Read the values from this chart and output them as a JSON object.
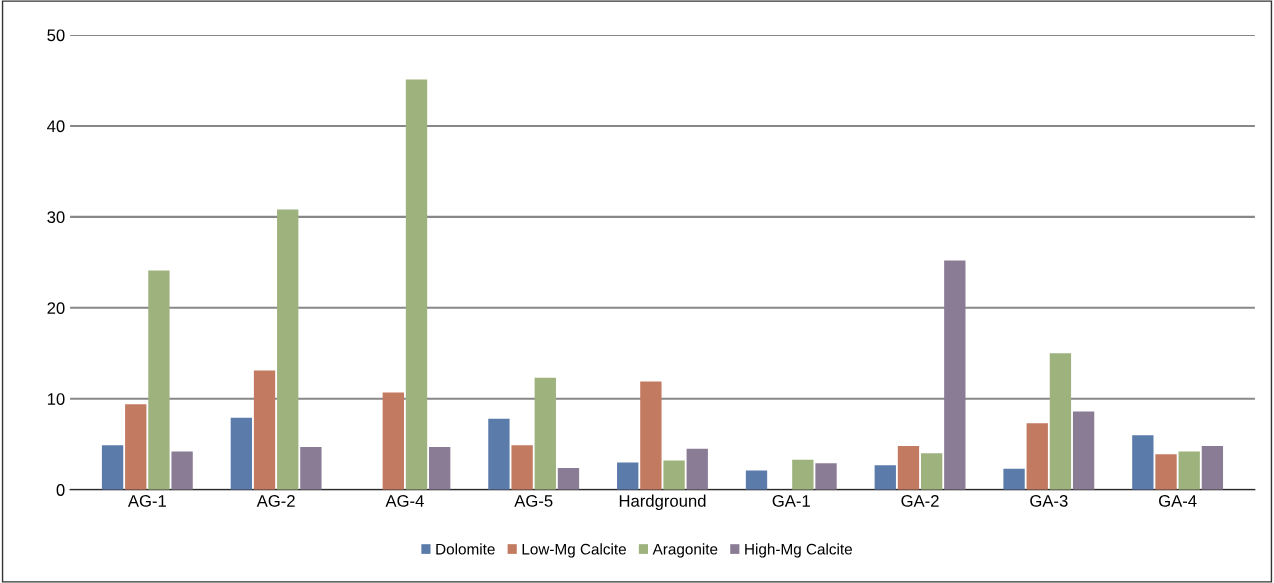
{
  "chart_data": {
    "type": "bar",
    "categories": [
      "AG-1",
      "AG-2",
      "AG-4",
      "AG-5",
      "Hardground",
      "GA-1",
      "GA-2",
      "GA-3",
      "GA-4"
    ],
    "series": [
      {
        "name": "Dolomite",
        "color": "#5b7bab",
        "values": [
          4.9,
          7.9,
          null,
          7.8,
          3.0,
          2.1,
          2.7,
          2.3,
          6.0
        ]
      },
      {
        "name": "Low-Mg Calcite",
        "color": "#c27a60",
        "values": [
          9.4,
          13.1,
          10.7,
          4.9,
          11.9,
          null,
          4.8,
          7.3,
          3.9
        ]
      },
      {
        "name": "Aragonite",
        "color": "#9db27c",
        "values": [
          24.1,
          30.8,
          45.1,
          12.3,
          3.2,
          3.3,
          4.0,
          15.0,
          4.2
        ]
      },
      {
        "name": "High-Mg Calcite",
        "color": "#8b7c95",
        "values": [
          4.2,
          4.7,
          4.7,
          2.4,
          4.5,
          2.9,
          25.2,
          8.6,
          4.8
        ]
      }
    ],
    "ylim": [
      0,
      50
    ],
    "yticks": [
      0,
      10,
      20,
      30,
      40,
      50
    ],
    "grid": "y",
    "legend": "bottom"
  }
}
